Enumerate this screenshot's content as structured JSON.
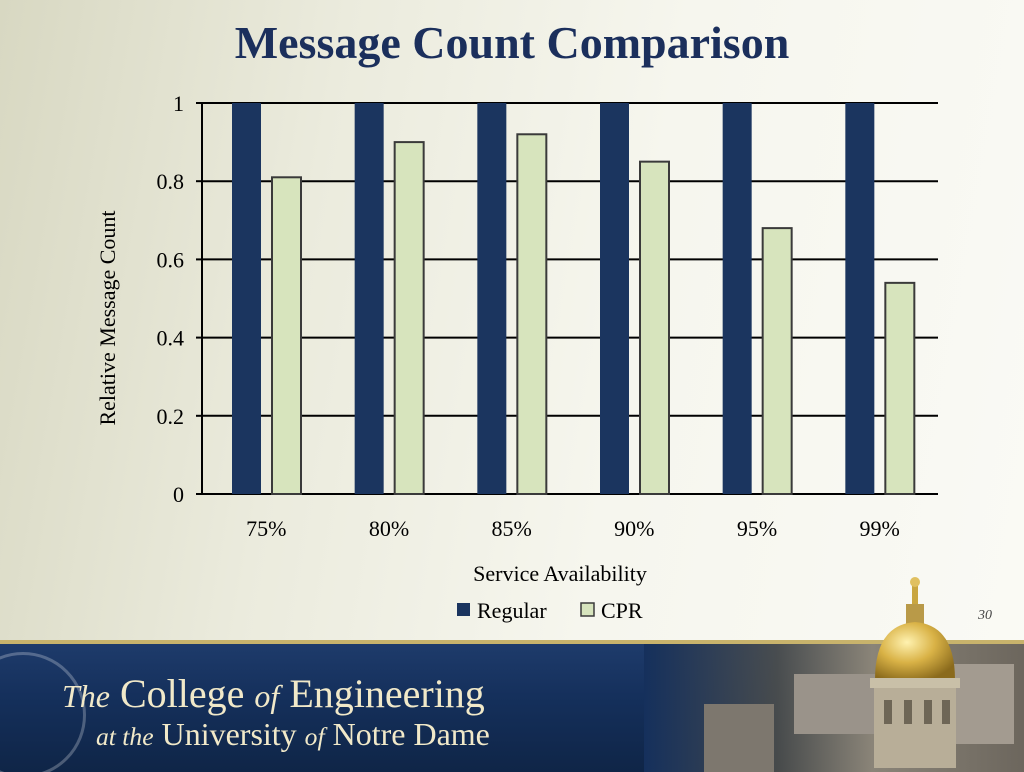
{
  "slide": {
    "title": "Message Count Comparison",
    "number": "30"
  },
  "chart_data": {
    "type": "bar",
    "categories": [
      "75%",
      "80%",
      "85%",
      "90%",
      "95%",
      "99%"
    ],
    "series": [
      {
        "name": "Regular",
        "values": [
          1,
          1,
          1,
          1,
          1,
          1
        ],
        "color": "#1b355f"
      },
      {
        "name": "CPR",
        "values": [
          0.81,
          0.9,
          0.92,
          0.85,
          0.68,
          0.54
        ],
        "color": "#d7e4bd"
      }
    ],
    "title": "Message Count Comparison",
    "xlabel": "Service Availability",
    "ylabel": "Relative Message Count",
    "ylim": [
      0,
      1
    ],
    "yticks": [
      0,
      0.2,
      0.4,
      0.6,
      0.8,
      1
    ],
    "ytick_labels": [
      "0",
      "0.2",
      "0.4",
      "0.6",
      "0.8",
      "1"
    ],
    "grid": true,
    "legend_position": "bottom"
  },
  "footer": {
    "line1": [
      "The",
      "College",
      "of",
      "Engineering"
    ],
    "line2": [
      "at the",
      "University",
      "of",
      "Notre Dame"
    ],
    "text_color": "#f1e9c9",
    "band_color": "#15305c"
  }
}
